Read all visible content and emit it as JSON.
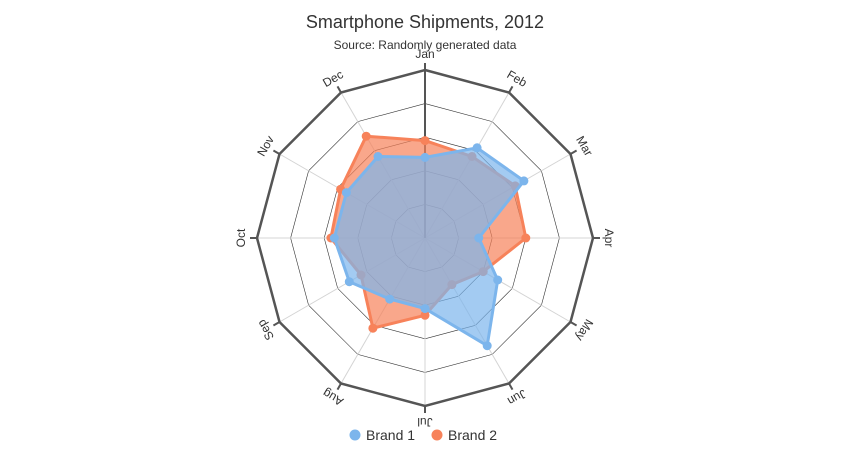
{
  "chart_data": {
    "type": "radar",
    "title": "Smartphone Shipments, 2012",
    "subtitle": "Source: Randomly generated data",
    "categories": [
      "Jan",
      "Feb",
      "Mar",
      "Apr",
      "May",
      "Jun",
      "Jul",
      "Aug",
      "Sep",
      "Oct",
      "Nov",
      "Dec"
    ],
    "rmax": 5,
    "grid_levels": 5,
    "series": [
      {
        "name": "Brand 1",
        "color": "#7cb5ec",
        "values": [
          2.4,
          3.1,
          3.4,
          1.6,
          2.5,
          3.7,
          2.1,
          2.1,
          2.6,
          2.7,
          2.7,
          2.8
        ]
      },
      {
        "name": "Brand 2",
        "color": "#f7825a",
        "values": [
          2.9,
          2.8,
          3.1,
          3.0,
          2.0,
          1.6,
          2.3,
          3.1,
          2.2,
          2.8,
          2.9,
          3.5
        ]
      }
    ],
    "legend": "bottom-center"
  }
}
